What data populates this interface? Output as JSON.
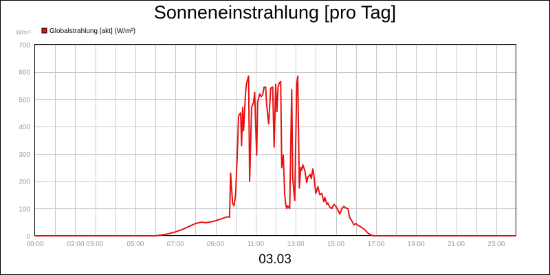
{
  "chart_data": {
    "type": "line",
    "title": "Sonneneinstrahlung [pro Tag]",
    "xlabel": "03.03",
    "ylabel": "W/m²",
    "ylim": [
      0,
      700
    ],
    "xlim": [
      0,
      24
    ],
    "y_ticks": [
      "0",
      "100",
      "200",
      "300",
      "400",
      "500",
      "600",
      "700"
    ],
    "x_ticks": [
      {
        "label": "00:00",
        "x": 0
      },
      {
        "label": "02:00 03:00",
        "x": 2.5
      },
      {
        "label": "05:00",
        "x": 5
      },
      {
        "label": "07:00",
        "x": 7
      },
      {
        "label": "09:00",
        "x": 9
      },
      {
        "label": "11:00",
        "x": 11
      },
      {
        "label": "13:00",
        "x": 13
      },
      {
        "label": "15:00",
        "x": 15
      },
      {
        "label": "17:00",
        "x": 17
      },
      {
        "label": "19:00",
        "x": 19
      },
      {
        "label": "21:00",
        "x": 21
      },
      {
        "label": "23:00",
        "x": 23
      }
    ],
    "grid": true,
    "legend_position": "top-left",
    "series": [
      {
        "name": "Globalstrahlung [akt] (W/m²)",
        "color": "#e81010",
        "x": [
          0,
          6.0,
          6.5,
          6.9,
          7.3,
          7.7,
          8.0,
          8.3,
          8.5,
          8.7,
          9.0,
          9.2,
          9.4,
          9.6,
          9.7,
          9.75,
          9.85,
          9.92,
          10.0,
          10.1,
          10.15,
          10.25,
          10.3,
          10.35,
          10.4,
          10.5,
          10.55,
          10.65,
          10.7,
          10.8,
          10.9,
          10.95,
          11.05,
          11.1,
          11.2,
          11.28,
          11.35,
          11.42,
          11.5,
          11.55,
          11.65,
          11.75,
          11.85,
          11.92,
          12.0,
          12.06,
          12.12,
          12.18,
          12.25,
          12.3,
          12.38,
          12.45,
          12.5,
          12.55,
          12.6,
          12.7,
          12.8,
          12.85,
          12.95,
          13.05,
          13.1,
          13.18,
          13.25,
          13.3,
          13.35,
          13.45,
          13.55,
          13.6,
          13.68,
          13.72,
          13.78,
          13.85,
          13.9,
          14.0,
          14.1,
          14.2,
          14.3,
          14.4,
          14.45,
          14.55,
          14.6,
          14.7,
          14.8,
          14.9,
          15.0,
          15.1,
          15.2,
          15.3,
          15.4,
          15.5,
          15.6,
          15.7,
          15.8,
          15.9,
          16.0,
          16.1,
          16.2,
          16.3,
          16.4,
          16.5,
          16.6,
          16.7,
          16.8,
          16.9,
          17.0,
          17.2,
          17.4,
          17.6,
          17.8,
          18.0,
          18.2,
          18.5,
          19.0,
          24.0
        ],
        "y": [
          0,
          0,
          5,
          12,
          22,
          35,
          45,
          50,
          48,
          50,
          55,
          60,
          65,
          70,
          68,
          230,
          120,
          110,
          150,
          330,
          440,
          450,
          330,
          470,
          385,
          530,
          560,
          585,
          200,
          470,
          490,
          525,
          295,
          490,
          520,
          510,
          515,
          545,
          545,
          480,
          410,
          540,
          545,
          325,
          555,
          455,
          545,
          560,
          565,
          250,
          295,
          150,
          115,
          100,
          110,
          100,
          535,
          210,
          130,
          555,
          585,
          175,
          250,
          240,
          260,
          240,
          195,
          215,
          220,
          225,
          210,
          245,
          225,
          155,
          180,
          150,
          155,
          125,
          140,
          115,
          120,
          105,
          100,
          115,
          108,
          95,
          80,
          100,
          108,
          102,
          100,
          65,
          55,
          40,
          45,
          38,
          35,
          30,
          25,
          18,
          10,
          5,
          2,
          0,
          0,
          0,
          0,
          0,
          0,
          0,
          0,
          0,
          0,
          0
        ]
      }
    ]
  }
}
